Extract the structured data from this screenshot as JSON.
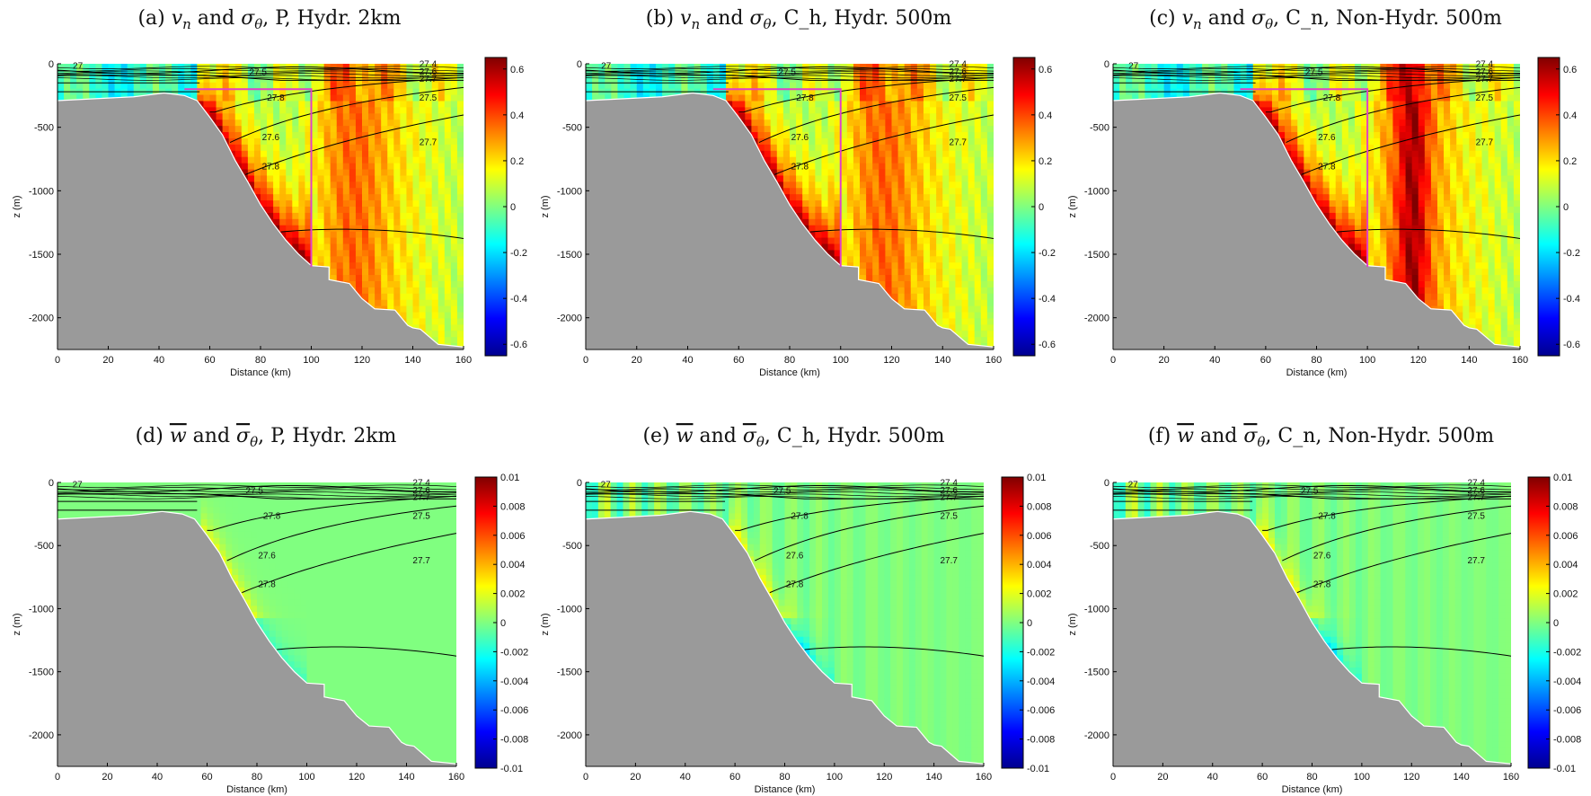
{
  "chart_data": [
    {
      "id": "a",
      "type": "heatmap",
      "title": "(a) v_n and σ_θ, P, Hydr. 2km",
      "title_parts": {
        "label": "(a)",
        "var": "v",
        "sub": "n",
        "sep": "and",
        "var2": "σ",
        "sub2": "θ",
        "rest": ", P, Hydr. 2km"
      },
      "xlabel": "Distance (km)",
      "ylabel": "z (m)",
      "xlim": [
        0,
        160
      ],
      "ylim": [
        -2250,
        0
      ],
      "xticks": [
        "0",
        "20",
        "40",
        "60",
        "80",
        "100",
        "120",
        "140",
        "160"
      ],
      "yticks": [
        "0",
        "-500",
        "-1000",
        "-1500",
        "-2000"
      ],
      "colorbar": {
        "min": -0.65,
        "max": 0.65,
        "ticks": [
          "0.6",
          "0.4",
          "0.2",
          "0",
          "-0.2",
          "-0.4",
          "-0.6"
        ],
        "tick_values": [
          0.6,
          0.4,
          0.2,
          0,
          -0.2,
          -0.4,
          -0.6
        ]
      },
      "field": "vn",
      "box": {
        "x0": 50,
        "x1": 100,
        "z0": -200,
        "z1": -1600
      },
      "contour_labels": [
        "27",
        "27.4",
        "27.5",
        "27.6",
        "27.7",
        "27.8",
        "27.5",
        "27.6",
        "27.7",
        "27.8"
      ],
      "contour_levels": [
        27.0,
        27.4,
        27.5,
        27.6,
        27.7,
        27.8
      ]
    },
    {
      "id": "b",
      "type": "heatmap",
      "title": "(b) v_n and σ_θ, C_h, Hydr. 500m",
      "title_parts": {
        "label": "(b)",
        "var": "v",
        "sub": "n",
        "sep": "and",
        "var2": "σ",
        "sub2": "θ",
        "rest": ", C_h, Hydr. 500m"
      },
      "xlabel": "Distance (km)",
      "ylabel": "z (m)",
      "xlim": [
        0,
        160
      ],
      "ylim": [
        -2250,
        0
      ],
      "xticks": [
        "0",
        "20",
        "40",
        "60",
        "80",
        "100",
        "120",
        "140",
        "160"
      ],
      "yticks": [
        "0",
        "-500",
        "-1000",
        "-1500",
        "-2000"
      ],
      "colorbar": {
        "min": -0.65,
        "max": 0.65,
        "ticks": [
          "0.6",
          "0.4",
          "0.2",
          "0",
          "-0.2",
          "-0.4",
          "-0.6"
        ],
        "tick_values": [
          0.6,
          0.4,
          0.2,
          0,
          -0.2,
          -0.4,
          -0.6
        ]
      },
      "field": "vn",
      "box": {
        "x0": 50,
        "x1": 100,
        "z0": -200,
        "z1": -1600
      },
      "contour_labels": [
        "27",
        "27.4",
        "27.5",
        "27.6",
        "27.7",
        "27.8",
        "27.5",
        "27.6",
        "27.7",
        "27.8"
      ],
      "contour_levels": [
        27.0,
        27.4,
        27.5,
        27.6,
        27.7,
        27.8
      ]
    },
    {
      "id": "c",
      "type": "heatmap",
      "title": "(c) v_n and σ_θ, C_n, Non-Hydr. 500m",
      "title_parts": {
        "label": "(c)",
        "var": "v",
        "sub": "n",
        "sep": "and",
        "var2": "σ",
        "sub2": "θ",
        "rest": ", C_n, Non-Hydr. 500m"
      },
      "xlabel": "Distance (km)",
      "ylabel": "z (m)",
      "xlim": [
        0,
        160
      ],
      "ylim": [
        -2250,
        0
      ],
      "xticks": [
        "0",
        "20",
        "40",
        "60",
        "80",
        "100",
        "120",
        "140",
        "160"
      ],
      "yticks": [
        "0",
        "-500",
        "-1000",
        "-1500",
        "-2000"
      ],
      "colorbar": {
        "min": -0.65,
        "max": 0.65,
        "ticks": [
          "0.6",
          "0.4",
          "0.2",
          "0",
          "-0.2",
          "-0.4",
          "-0.6"
        ],
        "tick_values": [
          0.6,
          0.4,
          0.2,
          0,
          -0.2,
          -0.4,
          -0.6
        ]
      },
      "field": "vn",
      "box": {
        "x0": 50,
        "x1": 100,
        "z0": -200,
        "z1": -1600
      },
      "contour_labels": [
        "27",
        "27.4",
        "27.5",
        "27.6",
        "27.7",
        "27.8",
        "27.5",
        "27.6",
        "27.7",
        "27.8"
      ],
      "contour_levels": [
        27.0,
        27.4,
        27.5,
        27.6,
        27.7,
        27.8
      ]
    },
    {
      "id": "d",
      "type": "heatmap",
      "title": "(d) w̄ and σ̄_θ, P, Hydr. 2km",
      "title_parts": {
        "label": "(d)",
        "var": "w",
        "sub": "",
        "sep": "and",
        "var2": "σ",
        "sub2": "θ",
        "rest": ", P, Hydr. 2km",
        "overline": true
      },
      "xlabel": "Distance (km)",
      "ylabel": "z (m)",
      "xlim": [
        0,
        160
      ],
      "ylim": [
        -2250,
        0
      ],
      "xticks": [
        "0",
        "20",
        "40",
        "60",
        "80",
        "100",
        "120",
        "140",
        "160"
      ],
      "yticks": [
        "0",
        "-500",
        "-1000",
        "-1500",
        "-2000"
      ],
      "colorbar": {
        "min": -0.01,
        "max": 0.01,
        "ticks": [
          "0.01",
          "0.008",
          "0.006",
          "0.004",
          "0.002",
          "0",
          "-0.002",
          "-0.004",
          "-0.006",
          "-0.008",
          "-0.01"
        ],
        "tick_values": [
          0.01,
          0.008,
          0.006,
          0.004,
          0.002,
          0,
          -0.002,
          -0.004,
          -0.006,
          -0.008,
          -0.01
        ]
      },
      "field": "w",
      "contour_labels": [
        "27",
        "27.4",
        "27.5",
        "27.6",
        "27.7",
        "27.8",
        "27.5",
        "27.6",
        "27.7",
        "27.8"
      ],
      "contour_levels": [
        27.0,
        27.4,
        27.5,
        27.6,
        27.7,
        27.8
      ]
    },
    {
      "id": "e",
      "type": "heatmap",
      "title": "(e) w̄ and σ̄_θ, C_h, Hydr. 500m",
      "title_parts": {
        "label": "(e)",
        "var": "w",
        "sub": "",
        "sep": "and",
        "var2": "σ",
        "sub2": "θ",
        "rest": ", C_h, Hydr. 500m",
        "overline": true
      },
      "xlabel": "Distance (km)",
      "ylabel": "z (m)",
      "xlim": [
        0,
        160
      ],
      "ylim": [
        -2250,
        0
      ],
      "xticks": [
        "0",
        "20",
        "40",
        "60",
        "80",
        "100",
        "120",
        "140",
        "160"
      ],
      "yticks": [
        "0",
        "-500",
        "-1000",
        "-1500",
        "-2000"
      ],
      "colorbar": {
        "min": -0.01,
        "max": 0.01,
        "ticks": [
          "0.01",
          "0.008",
          "0.006",
          "0.004",
          "0.002",
          "0",
          "-0.002",
          "-0.004",
          "-0.006",
          "-0.008",
          "-0.01"
        ],
        "tick_values": [
          0.01,
          0.008,
          0.006,
          0.004,
          0.002,
          0,
          -0.002,
          -0.004,
          -0.006,
          -0.008,
          -0.01
        ]
      },
      "field": "w",
      "contour_labels": [
        "27",
        "27.4",
        "27.5",
        "27.6",
        "27.7",
        "27.8",
        "27.5",
        "27.6",
        "27.7",
        "27.8"
      ],
      "contour_levels": [
        27.0,
        27.4,
        27.5,
        27.6,
        27.7,
        27.8
      ]
    },
    {
      "id": "f",
      "type": "heatmap",
      "title": "(f) w̄ and σ̄_θ, C_n, Non-Hydr. 500m",
      "title_parts": {
        "label": "(f)",
        "var": "w",
        "sub": "",
        "sep": "and",
        "var2": "σ",
        "sub2": "θ",
        "rest": ", C_n, Non-Hydr. 500m",
        "overline": true
      },
      "xlabel": "Distance (km)",
      "ylabel": "z (m)",
      "xlim": [
        0,
        160
      ],
      "ylim": [
        -2250,
        0
      ],
      "xticks": [
        "0",
        "20",
        "40",
        "60",
        "80",
        "100",
        "120",
        "140",
        "160"
      ],
      "yticks": [
        "0",
        "-500",
        "-1000",
        "-1500",
        "-2000"
      ],
      "colorbar": {
        "min": -0.01,
        "max": 0.01,
        "ticks": [
          "0.01",
          "0.008",
          "0.006",
          "0.004",
          "0.002",
          "0",
          "-0.002",
          "-0.004",
          "-0.006",
          "-0.008",
          "-0.01"
        ],
        "tick_values": [
          0.01,
          0.008,
          0.006,
          0.004,
          0.002,
          0,
          -0.002,
          -0.004,
          -0.006,
          -0.008,
          -0.01
        ]
      },
      "field": "w",
      "contour_labels": [
        "27",
        "27.4",
        "27.5",
        "27.6",
        "27.7",
        "27.8",
        "27.5",
        "27.6",
        "27.7",
        "27.8"
      ],
      "contour_levels": [
        27.0,
        27.4,
        27.5,
        27.6,
        27.7,
        27.8
      ]
    }
  ],
  "colors": {
    "land": "#9a9a9a",
    "box": "#e040c8",
    "contour": "#000000"
  }
}
